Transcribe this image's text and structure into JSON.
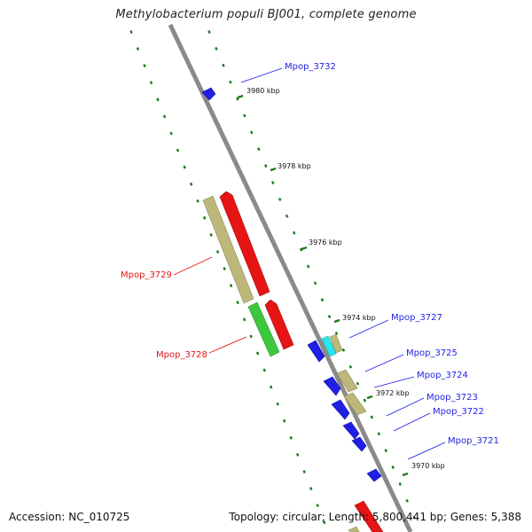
{
  "title": "Methylobacterium populi BJ001, complete genome",
  "footer": {
    "accession": "Accession: NC_010725",
    "summary": "Topology: circular; Length: 5,800,441 bp; Genes: 5,388"
  },
  "ticks": [
    "3980 kbp",
    "3978 kbp",
    "3976 kbp",
    "3974 kbp",
    "3972 kbp",
    "3970 kbp"
  ],
  "gene_labels": [
    "Mpop_3732",
    "Mpop_3729",
    "Mpop_3728",
    "Mpop_3727",
    "Mpop_3725",
    "Mpop_3724",
    "Mpop_3723",
    "Mpop_3722",
    "Mpop_3721"
  ],
  "colors": {
    "axis": "#8c8c8c",
    "dots": "#1e7a1e",
    "blue": "#1f1fe6",
    "red": "#e61414",
    "khaki": "#bdb77a",
    "green": "#3cc83c",
    "cyan": "#28e6f0",
    "label_blue": "#1f1fe6",
    "label_red": "#e61414"
  }
}
